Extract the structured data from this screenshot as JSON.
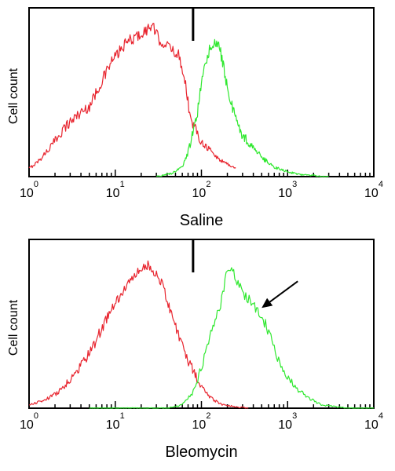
{
  "chart_data": [
    {
      "type": "line",
      "title": "",
      "xlabel": "Saline",
      "ylabel": "Cell count",
      "x_scale": "log",
      "xlim": [
        1,
        10000
      ],
      "x_ticks": [
        {
          "base": "10",
          "exp": "0"
        },
        {
          "base": "10",
          "exp": "1"
        },
        {
          "base": "10",
          "exp": "2"
        },
        {
          "base": "10",
          "exp": "3"
        },
        {
          "base": "10",
          "exp": "4"
        }
      ],
      "gate_x": 80,
      "series": [
        {
          "color": "#e8252f",
          "x": [
            1.0,
            1.3,
            1.8,
            2.5,
            3.5,
            5,
            7,
            9,
            11,
            14,
            18,
            22,
            27,
            32,
            38,
            45,
            55,
            65,
            75,
            85,
            100,
            120,
            150,
            200,
            250
          ],
          "y": [
            0.05,
            0.1,
            0.19,
            0.3,
            0.38,
            0.44,
            0.6,
            0.72,
            0.78,
            0.85,
            0.88,
            0.91,
            0.95,
            0.86,
            0.83,
            0.8,
            0.76,
            0.6,
            0.35,
            0.3,
            0.22,
            0.18,
            0.12,
            0.08,
            0.05
          ]
        },
        {
          "color": "#2fe82f",
          "x": [
            30,
            45,
            60,
            70,
            80,
            90,
            100,
            110,
            125,
            140,
            160,
            180,
            200,
            250,
            300,
            400,
            500,
            700,
            1000,
            1500,
            2000,
            2500,
            3000
          ],
          "y": [
            0.0,
            0.02,
            0.06,
            0.15,
            0.28,
            0.4,
            0.58,
            0.7,
            0.8,
            0.85,
            0.82,
            0.7,
            0.55,
            0.36,
            0.26,
            0.18,
            0.12,
            0.06,
            0.03,
            0.01,
            0.01,
            0.0,
            0.0
          ]
        }
      ]
    },
    {
      "type": "line",
      "title": "",
      "xlabel": "Bleomycin",
      "ylabel": "Cell count",
      "x_scale": "log",
      "xlim": [
        1,
        10000
      ],
      "x_ticks": [
        {
          "base": "10",
          "exp": "0"
        },
        {
          "base": "10",
          "exp": "1"
        },
        {
          "base": "10",
          "exp": "2"
        },
        {
          "base": "10",
          "exp": "3"
        },
        {
          "base": "10",
          "exp": "4"
        }
      ],
      "gate_x": 80,
      "annotation_arrow_x": 500,
      "series": [
        {
          "color": "#e8252f",
          "x": [
            1.0,
            1.5,
            2.2,
            3,
            4,
            5.5,
            7,
            9,
            12,
            15,
            19,
            23,
            27,
            32,
            38,
            45,
            55,
            70,
            90,
            110,
            140,
            180,
            250,
            350
          ],
          "y": [
            0.02,
            0.05,
            0.1,
            0.18,
            0.27,
            0.38,
            0.5,
            0.62,
            0.72,
            0.8,
            0.86,
            0.9,
            0.88,
            0.82,
            0.72,
            0.6,
            0.45,
            0.3,
            0.18,
            0.1,
            0.05,
            0.02,
            0.01,
            0.0
          ]
        },
        {
          "color": "#2fe82f",
          "x": [
            5,
            10,
            20,
            40,
            60,
            80,
            100,
            120,
            150,
            180,
            200,
            230,
            260,
            300,
            350,
            400,
            450,
            500,
            600,
            700,
            800,
            1000,
            1300,
            1800,
            2500,
            3500,
            5000,
            8000,
            10000
          ],
          "y": [
            0.0,
            0.0,
            0.0,
            0.0,
            0.02,
            0.1,
            0.25,
            0.4,
            0.58,
            0.72,
            0.9,
            0.88,
            0.8,
            0.72,
            0.68,
            0.65,
            0.62,
            0.58,
            0.48,
            0.38,
            0.3,
            0.2,
            0.12,
            0.06,
            0.02,
            0.01,
            0.0,
            0.0,
            0.0
          ]
        }
      ]
    }
  ]
}
